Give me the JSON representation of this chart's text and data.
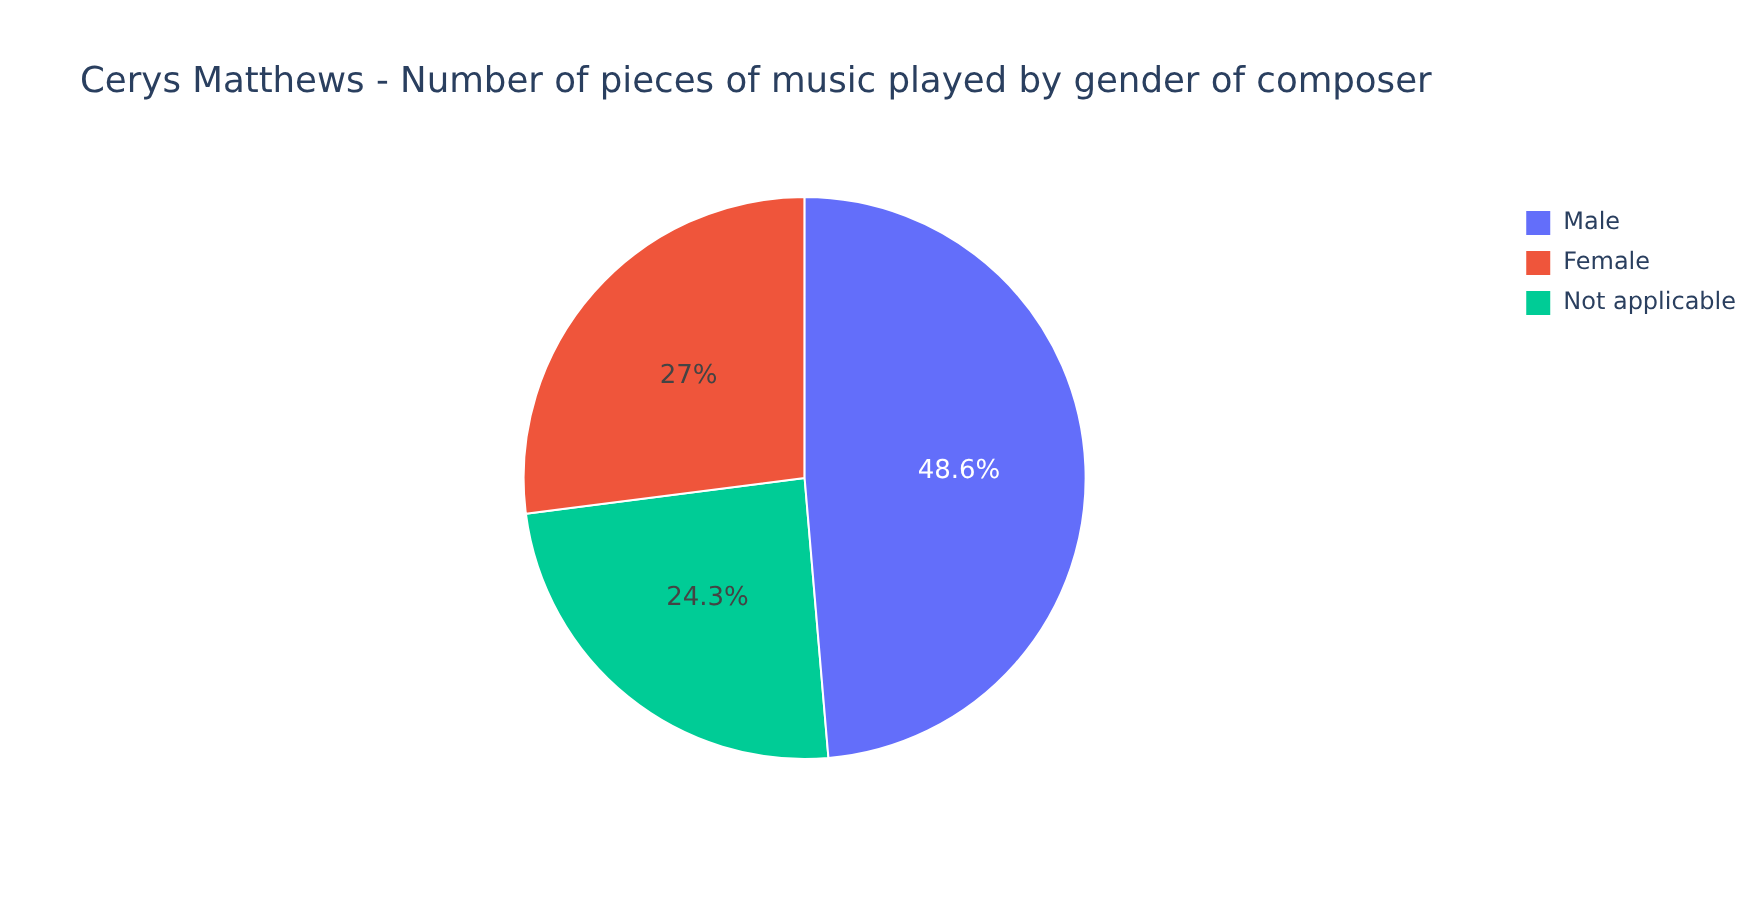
{
  "chart_data": {
    "type": "pie",
    "title": "Cerys Matthews - Number of pieces of music played by gender of composer",
    "categories": [
      "Male",
      "Female",
      "Not applicable"
    ],
    "values": [
      48.6,
      27,
      24.3
    ],
    "colors": [
      "#636efa",
      "#ef553b",
      "#00cc96"
    ],
    "value_labels": [
      "48.6%",
      "27%",
      "24.3%"
    ],
    "legend": "top right"
  }
}
